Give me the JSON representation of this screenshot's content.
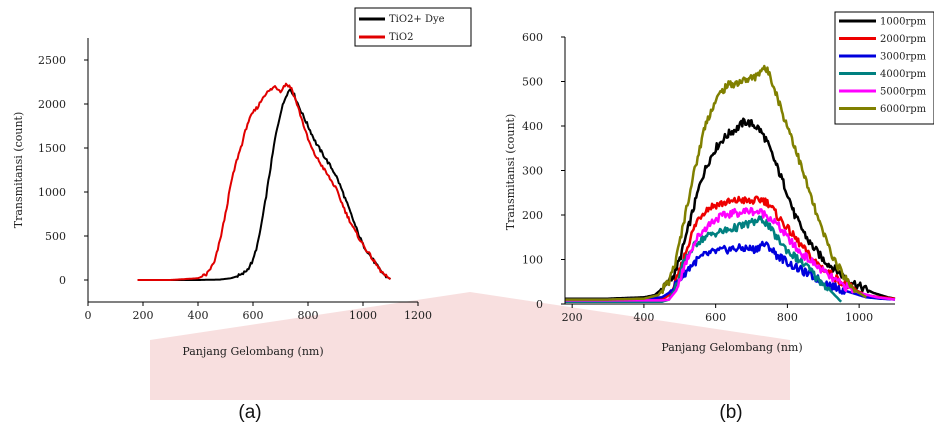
{
  "panels": {
    "a": "(a)",
    "b": "(b)"
  },
  "watermark_color": "#f3c4c4",
  "chart_data": [
    {
      "type": "line",
      "panel_label": "(a)",
      "xlabel": "Panjang Gelombang (nm)",
      "ylabel": "Transmitansi (count)",
      "xlim": [
        0,
        1200
      ],
      "ylim": [
        -250,
        2750
      ],
      "xticks": [
        0,
        200,
        400,
        600,
        800,
        1000,
        1200
      ],
      "yticks": [
        0,
        500,
        1000,
        1500,
        2000,
        2500
      ],
      "legend_position": "top-right",
      "series": [
        {
          "name": "TiO2+ Dye",
          "color": "#000000",
          "points": [
            [
              180,
              0
            ],
            [
              300,
              0
            ],
            [
              400,
              0
            ],
            [
              480,
              5
            ],
            [
              520,
              20
            ],
            [
              560,
              60
            ],
            [
              580,
              120
            ],
            [
              600,
              220
            ],
            [
              620,
              450
            ],
            [
              640,
              800
            ],
            [
              660,
              1200
            ],
            [
              680,
              1600
            ],
            [
              700,
              1900
            ],
            [
              720,
              2100
            ],
            [
              735,
              2170
            ],
            [
              750,
              2100
            ],
            [
              770,
              1950
            ],
            [
              800,
              1750
            ],
            [
              830,
              1550
            ],
            [
              860,
              1400
            ],
            [
              880,
              1300
            ],
            [
              900,
              1200
            ],
            [
              920,
              1050
            ],
            [
              950,
              800
            ],
            [
              980,
              550
            ],
            [
              1000,
              400
            ],
            [
              1030,
              260
            ],
            [
              1060,
              120
            ],
            [
              1080,
              50
            ],
            [
              1100,
              10
            ]
          ]
        },
        {
          "name": "TiO2",
          "color": "#e00000",
          "points": [
            [
              180,
              0
            ],
            [
              300,
              0
            ],
            [
              400,
              20
            ],
            [
              430,
              60
            ],
            [
              460,
              200
            ],
            [
              480,
              450
            ],
            [
              500,
              750
            ],
            [
              520,
              1100
            ],
            [
              540,
              1350
            ],
            [
              560,
              1550
            ],
            [
              580,
              1780
            ],
            [
              600,
              1900
            ],
            [
              620,
              1980
            ],
            [
              640,
              2100
            ],
            [
              660,
              2150
            ],
            [
              680,
              2200
            ],
            [
              700,
              2150
            ],
            [
              720,
              2230
            ],
            [
              740,
              2180
            ],
            [
              760,
              2000
            ],
            [
              780,
              1800
            ],
            [
              800,
              1600
            ],
            [
              820,
              1450
            ],
            [
              840,
              1350
            ],
            [
              860,
              1250
            ],
            [
              880,
              1150
            ],
            [
              900,
              1050
            ],
            [
              920,
              900
            ],
            [
              940,
              750
            ],
            [
              970,
              560
            ],
            [
              1000,
              400
            ],
            [
              1030,
              260
            ],
            [
              1060,
              120
            ],
            [
              1080,
              50
            ],
            [
              1100,
              10
            ]
          ]
        }
      ]
    },
    {
      "type": "line",
      "panel_label": "(b)",
      "xlabel": "Panjang Gelombang (nm)",
      "ylabel": "Transmitansi (count)",
      "xlim": [
        180,
        1100
      ],
      "ylim": [
        0,
        600
      ],
      "xticks": [
        200,
        400,
        600,
        800,
        1000
      ],
      "yticks": [
        0,
        100,
        200,
        300,
        400,
        500,
        600
      ],
      "legend_position": "top-right",
      "series": [
        {
          "name": "1000rpm",
          "color": "#000000",
          "points": [
            [
              180,
              12
            ],
            [
              300,
              12
            ],
            [
              400,
              15
            ],
            [
              430,
              20
            ],
            [
              460,
              40
            ],
            [
              480,
              60
            ],
            [
              500,
              100
            ],
            [
              520,
              160
            ],
            [
              540,
              220
            ],
            [
              560,
              280
            ],
            [
              580,
              320
            ],
            [
              600,
              350
            ],
            [
              620,
              370
            ],
            [
              640,
              385
            ],
            [
              660,
              395
            ],
            [
              680,
              410
            ],
            [
              700,
              405
            ],
            [
              720,
              395
            ],
            [
              740,
              370
            ],
            [
              760,
              330
            ],
            [
              780,
              290
            ],
            [
              800,
              250
            ],
            [
              820,
              200
            ],
            [
              840,
              170
            ],
            [
              860,
              140
            ],
            [
              880,
              120
            ],
            [
              900,
              100
            ],
            [
              930,
              80
            ],
            [
              960,
              60
            ],
            [
              1000,
              40
            ],
            [
              1040,
              25
            ],
            [
              1080,
              15
            ],
            [
              1100,
              12
            ]
          ]
        },
        {
          "name": "2000rpm",
          "color": "#ee0000",
          "points": [
            [
              180,
              8
            ],
            [
              300,
              8
            ],
            [
              400,
              8
            ],
            [
              450,
              10
            ],
            [
              470,
              20
            ],
            [
              490,
              50
            ],
            [
              510,
              100
            ],
            [
              530,
              150
            ],
            [
              550,
              190
            ],
            [
              570,
              210
            ],
            [
              590,
              220
            ],
            [
              610,
              225
            ],
            [
              630,
              228
            ],
            [
              650,
              230
            ],
            [
              670,
              235
            ],
            [
              690,
              230
            ],
            [
              710,
              232
            ],
            [
              730,
              235
            ],
            [
              750,
              225
            ],
            [
              770,
              200
            ],
            [
              790,
              180
            ],
            [
              810,
              160
            ],
            [
              830,
              140
            ],
            [
              850,
              120
            ],
            [
              870,
              100
            ],
            [
              900,
              80
            ],
            [
              940,
              55
            ],
            [
              980,
              35
            ],
            [
              1020,
              20
            ],
            [
              1060,
              15
            ],
            [
              1100,
              12
            ]
          ]
        },
        {
          "name": "3000rpm",
          "color": "#0000dd",
          "points": [
            [
              180,
              10
            ],
            [
              300,
              10
            ],
            [
              400,
              12
            ],
            [
              450,
              15
            ],
            [
              470,
              25
            ],
            [
              490,
              45
            ],
            [
              510,
              65
            ],
            [
              530,
              85
            ],
            [
              550,
              100
            ],
            [
              570,
              110
            ],
            [
              600,
              118
            ],
            [
              630,
              122
            ],
            [
              660,
              125
            ],
            [
              690,
              125
            ],
            [
              710,
              122
            ],
            [
              730,
              135
            ],
            [
              750,
              128
            ],
            [
              770,
              110
            ],
            [
              790,
              100
            ],
            [
              810,
              88
            ],
            [
              840,
              75
            ],
            [
              870,
              62
            ],
            [
              900,
              50
            ],
            [
              940,
              35
            ],
            [
              980,
              25
            ],
            [
              1020,
              15
            ],
            [
              1060,
              12
            ],
            [
              1100,
              10
            ]
          ]
        },
        {
          "name": "4000rpm",
          "color": "#008080",
          "points": [
            [
              180,
              5
            ],
            [
              300,
              5
            ],
            [
              400,
              5
            ],
            [
              450,
              5
            ],
            [
              470,
              10
            ],
            [
              490,
              40
            ],
            [
              510,
              90
            ],
            [
              530,
              120
            ],
            [
              550,
              140
            ],
            [
              570,
              150
            ],
            [
              600,
              160
            ],
            [
              630,
              165
            ],
            [
              650,
              170
            ],
            [
              670,
              175
            ],
            [
              690,
              180
            ],
            [
              710,
              185
            ],
            [
              730,
              190
            ],
            [
              745,
              180
            ],
            [
              760,
              160
            ],
            [
              780,
              140
            ],
            [
              800,
              120
            ],
            [
              830,
              100
            ],
            [
              860,
              80
            ],
            [
              880,
              60
            ],
            [
              900,
              45
            ],
            [
              920,
              30
            ],
            [
              950,
              5
            ]
          ]
        },
        {
          "name": "5000rpm",
          "color": "#ff00ff",
          "points": [
            [
              180,
              8
            ],
            [
              300,
              8
            ],
            [
              400,
              8
            ],
            [
              450,
              8
            ],
            [
              470,
              10
            ],
            [
              490,
              30
            ],
            [
              510,
              80
            ],
            [
              530,
              120
            ],
            [
              550,
              150
            ],
            [
              570,
              170
            ],
            [
              590,
              185
            ],
            [
              610,
              195
            ],
            [
              630,
              200
            ],
            [
              650,
              205
            ],
            [
              670,
              205
            ],
            [
              690,
              210
            ],
            [
              710,
              208
            ],
            [
              730,
              205
            ],
            [
              750,
              195
            ],
            [
              770,
              180
            ],
            [
              790,
              160
            ],
            [
              810,
              140
            ],
            [
              830,
              120
            ],
            [
              860,
              100
            ],
            [
              890,
              80
            ],
            [
              920,
              60
            ],
            [
              960,
              40
            ],
            [
              1000,
              25
            ],
            [
              1050,
              15
            ],
            [
              1100,
              10
            ]
          ]
        },
        {
          "name": "6000rpm",
          "color": "#808000",
          "points": [
            [
              180,
              10
            ],
            [
              300,
              10
            ],
            [
              400,
              12
            ],
            [
              440,
              20
            ],
            [
              470,
              50
            ],
            [
              490,
              100
            ],
            [
              510,
              180
            ],
            [
              530,
              260
            ],
            [
              550,
              330
            ],
            [
              570,
              400
            ],
            [
              590,
              440
            ],
            [
              610,
              470
            ],
            [
              630,
              490
            ],
            [
              650,
              495
            ],
            [
              670,
              500
            ],
            [
              690,
              505
            ],
            [
              710,
              510
            ],
            [
              730,
              530
            ],
            [
              750,
              520
            ],
            [
              770,
              470
            ],
            [
              790,
              420
            ],
            [
              810,
              380
            ],
            [
              830,
              330
            ],
            [
              850,
              280
            ],
            [
              870,
              230
            ],
            [
              890,
              180
            ],
            [
              910,
              140
            ],
            [
              930,
              100
            ],
            [
              960,
              60
            ],
            [
              990,
              30
            ],
            [
              1020,
              15
            ]
          ]
        }
      ]
    }
  ]
}
